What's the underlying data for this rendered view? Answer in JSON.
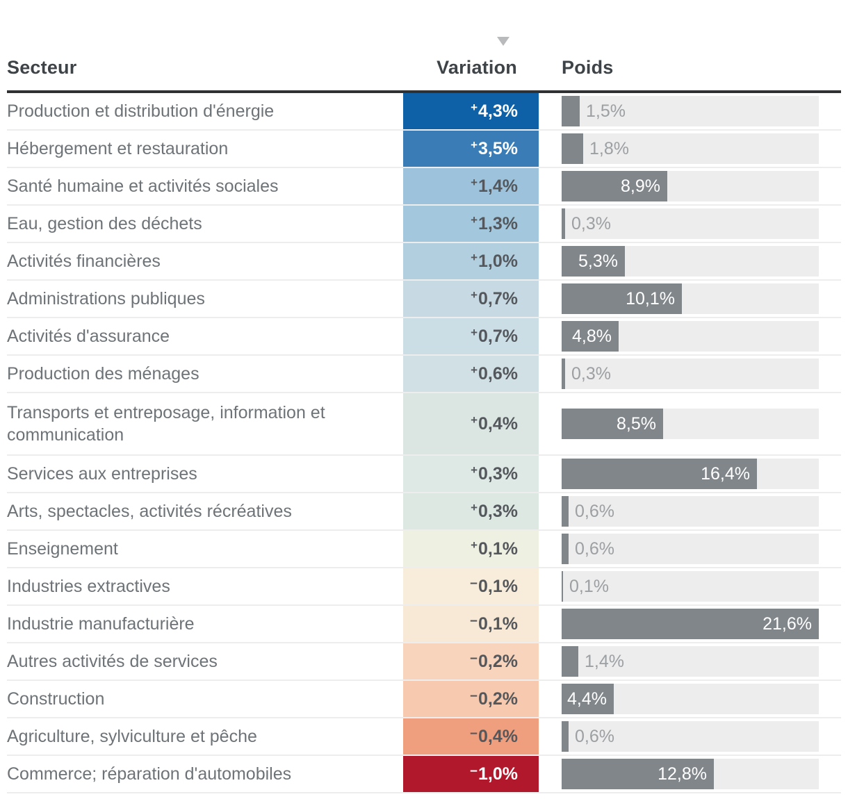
{
  "header": {
    "secteur": "Secteur",
    "variation": "Variation",
    "poids": "Poids"
  },
  "sort_indicator": {
    "column": "Variation",
    "direction": "descending",
    "icon": "triangle-down",
    "color": "#b9babb"
  },
  "colors": {
    "header_text": "#3e4347",
    "header_rule": "#2f3133",
    "sector_text": "#6d7377",
    "variation_dark_text": "#54585c",
    "variation_light_text": "#ffffff",
    "bar_fill": "#81868b",
    "bar_track": "#ededed",
    "bar_label_outside": "#9ca0a3",
    "row_separator": "#ededed",
    "positive_max": "#0e61a6",
    "negative_max": "#b2182b"
  },
  "chart_data": {
    "type": "table",
    "title": "",
    "columns": [
      "Secteur",
      "Variation",
      "Poids"
    ],
    "variation_color_scale": "diverging blue (positive) to red (negative)",
    "poids_axis_max": 21.6,
    "rows": [
      {
        "sector": "Production et distribution d'énergie",
        "sign": "+",
        "value": "4,3%",
        "bg": "#0e61a6",
        "text": "light",
        "weight": 1.5,
        "weight_label": "1,5%",
        "label_pos": "outside",
        "tall": false
      },
      {
        "sector": "Hébergement et restauration",
        "sign": "+",
        "value": "3,5%",
        "bg": "#3a7db6",
        "text": "light",
        "weight": 1.8,
        "weight_label": "1,8%",
        "label_pos": "outside",
        "tall": false
      },
      {
        "sector": "Santé humaine et activités sociales",
        "sign": "+",
        "value": "1,4%",
        "bg": "#9dc3dc",
        "text": "dark",
        "weight": 8.9,
        "weight_label": "8,9%",
        "label_pos": "inside",
        "tall": false
      },
      {
        "sector": "Eau, gestion des déchets",
        "sign": "+",
        "value": "1,3%",
        "bg": "#a3c7dd",
        "text": "dark",
        "weight": 0.3,
        "weight_label": "0,3%",
        "label_pos": "outside",
        "tall": false
      },
      {
        "sector": "Activités financières",
        "sign": "+",
        "value": "1,0%",
        "bg": "#b2cfe0",
        "text": "dark",
        "weight": 5.3,
        "weight_label": "5,3%",
        "label_pos": "inside",
        "tall": false
      },
      {
        "sector": "Administrations publiques",
        "sign": "+",
        "value": "0,7%",
        "bg": "#c7dae4",
        "text": "dark",
        "weight": 10.1,
        "weight_label": "10,1%",
        "label_pos": "inside",
        "tall": false
      },
      {
        "sector": "Activités d'assurance",
        "sign": "+",
        "value": "0,7%",
        "bg": "#cbdde5",
        "text": "dark",
        "weight": 4.8,
        "weight_label": "4,8%",
        "label_pos": "inside",
        "tall": false
      },
      {
        "sector": "Production des ménages",
        "sign": "+",
        "value": "0,6%",
        "bg": "#d1e0e5",
        "text": "dark",
        "weight": 0.3,
        "weight_label": "0,3%",
        "label_pos": "outside",
        "tall": false
      },
      {
        "sector": "Transports et entreposage, information et communication",
        "sign": "+",
        "value": "0,4%",
        "bg": "#dbe6e3",
        "text": "dark",
        "weight": 8.5,
        "weight_label": "8,5%",
        "label_pos": "inside",
        "tall": true
      },
      {
        "sector": "Services aux entreprises",
        "sign": "+",
        "value": "0,3%",
        "bg": "#dee8e4",
        "text": "dark",
        "weight": 16.4,
        "weight_label": "16,4%",
        "label_pos": "inside",
        "tall": false
      },
      {
        "sector": "Arts, spectacles, activités récréatives",
        "sign": "+",
        "value": "0,3%",
        "bg": "#dee8e3",
        "text": "dark",
        "weight": 0.6,
        "weight_label": "0,6%",
        "label_pos": "outside",
        "tall": false
      },
      {
        "sector": "Enseignement",
        "sign": "+",
        "value": "0,1%",
        "bg": "#eef0e2",
        "text": "dark",
        "weight": 0.6,
        "weight_label": "0,6%",
        "label_pos": "outside",
        "tall": false
      },
      {
        "sector": "Industries extractives",
        "sign": "−",
        "value": "0,1%",
        "bg": "#f8ecdb",
        "text": "dark",
        "weight": 0.1,
        "weight_label": "0,1%",
        "label_pos": "outside",
        "tall": false
      },
      {
        "sector": "Industrie manufacturière",
        "sign": "−",
        "value": "0,1%",
        "bg": "#f8e9d6",
        "text": "dark",
        "weight": 21.6,
        "weight_label": "21,6%",
        "label_pos": "inside",
        "tall": false
      },
      {
        "sector": "Autres activités de services",
        "sign": "−",
        "value": "0,2%",
        "bg": "#f8d4bc",
        "text": "dark",
        "weight": 1.4,
        "weight_label": "1,4%",
        "label_pos": "outside",
        "tall": false
      },
      {
        "sector": "Construction",
        "sign": "−",
        "value": "0,2%",
        "bg": "#f7c9ae",
        "text": "dark",
        "weight": 4.4,
        "weight_label": "4,4%",
        "label_pos": "inside",
        "tall": false
      },
      {
        "sector": "Agriculture, sylviculture et pêche",
        "sign": "−",
        "value": "0,4%",
        "bg": "#ef9e7e",
        "text": "dark",
        "weight": 0.6,
        "weight_label": "0,6%",
        "label_pos": "outside",
        "tall": false
      },
      {
        "sector": "Commerce; réparation d'automobiles",
        "sign": "−",
        "value": "1,0%",
        "bg": "#b2182b",
        "text": "light",
        "weight": 12.8,
        "weight_label": "12,8%",
        "label_pos": "inside",
        "tall": false
      }
    ]
  }
}
